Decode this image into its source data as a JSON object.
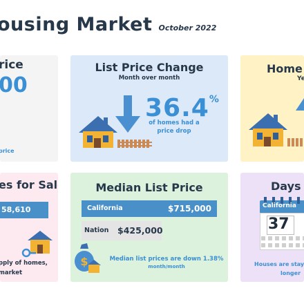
{
  "header": {
    "title": "ousing Market",
    "period": "October 2022"
  },
  "card_price": {
    "title": "rice",
    "value": "00",
    "footnote": "price"
  },
  "card_list_change": {
    "title": "List Price Change",
    "subtitle": "Month over month",
    "value": "36.4",
    "unit": "%",
    "caption_line1": "of homes had a",
    "caption_line2": "price drop"
  },
  "card_home": {
    "title": "Home",
    "subtitle": "Ye"
  },
  "card_for_sale": {
    "title": "es for Sale",
    "bar_value": "58,610",
    "caption_line1": "pply of homes,",
    "caption_line2": "market"
  },
  "card_median": {
    "title": "Median List Price",
    "california_label": "California",
    "california_value": "$715,000",
    "nation_label": "Nation",
    "nation_value": "$425,000",
    "note_line1": "Median list prices are down 1.38%",
    "note_line2": "month/month",
    "california_fraction": 1.0,
    "nation_fraction": 0.59
  },
  "card_days": {
    "title": "Days",
    "calendar_label": "California",
    "calendar_value": "37",
    "caption_line1": "Houses are stay",
    "caption_line2": "longer"
  },
  "colors": {
    "accent_blue": "#3b8fd4",
    "bar_blue": "#4a90c8",
    "arrow_blue": "#4a8fd0"
  }
}
